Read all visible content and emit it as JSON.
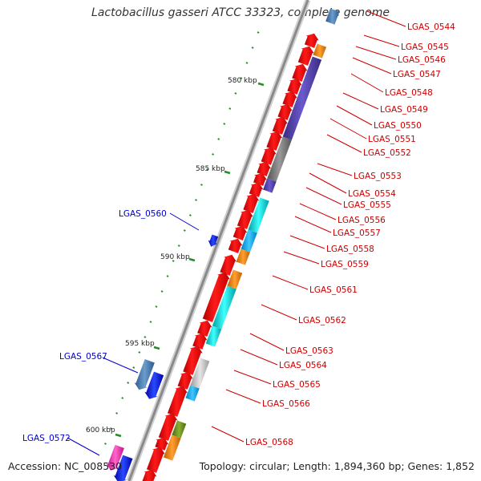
{
  "title": "Lactobacillus gasseri ATCC 33323, complete genome",
  "accession": "Accession: NC_008530",
  "summary": "Topology: circular; Length: 1,894,360 bp; Genes: 1,852",
  "colors": {
    "backbone": "#9a9a9a",
    "cds": "#ff0000",
    "plus_label": "#0000cc",
    "minus_label": "#cc0000",
    "tick": "#2b8a2b"
  },
  "scale_labels": [
    "580 kbp",
    "585 kbp",
    "590 kbp",
    "595 kbp",
    "600 kbp"
  ],
  "gene_labels_plus": [
    "LGAS_0560",
    "LGAS_0567",
    "LGAS_0572"
  ],
  "gene_labels_minus": [
    "LGAS_0544",
    "LGAS_0545",
    "LGAS_0546",
    "LGAS_0547",
    "LGAS_0548",
    "LGAS_0549",
    "LGAS_0550",
    "LGAS_0551",
    "LGAS_0552",
    "LGAS_0553",
    "LGAS_0554",
    "LGAS_0555",
    "LGAS_0556",
    "LGAS_0557",
    "LGAS_0558",
    "LGAS_0559",
    "LGAS_0561",
    "LGAS_0562",
    "LGAS_0563",
    "LGAS_0564",
    "LGAS_0565",
    "LGAS_0566",
    "LGAS_0568"
  ]
}
